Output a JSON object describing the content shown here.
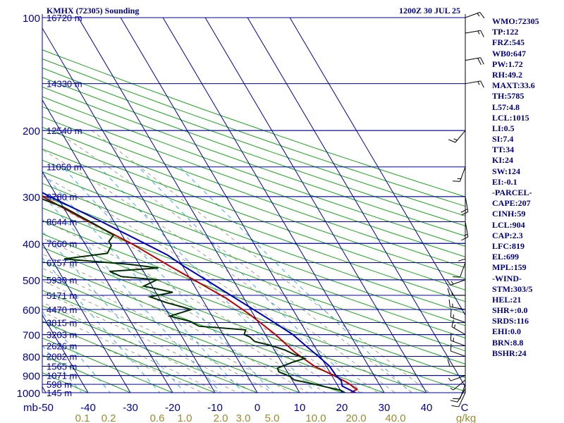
{
  "header": {
    "station": "KMHX (72305) Sounding",
    "time": "1200Z 30 JUL 25"
  },
  "indices": [
    "WMO:72305",
    "TP:122",
    "FRZ:545",
    "WB0:647",
    "PW:1.72",
    "RH:49.2",
    "MAXT:33.6",
    "TH:5785",
    "L57:4.8",
    "LCL:1015",
    "LI:0.5",
    "SI:7.4",
    "TT:34",
    "KI:24",
    "SW:124",
    "EI:-0.1",
    "-PARCEL-",
    "CAPE:207",
    "CINH:59",
    "LCL:904",
    "CAP:2.3",
    "LFC:819",
    "EL:699",
    "MPL:159",
    "-WIND-",
    "STM:303/5",
    "HEL:21",
    "SHR+:0.0",
    "SRDS:116",
    "EHI:0.0",
    "BRN:8.8",
    "BSHR:24"
  ],
  "chart_data": {
    "type": "line",
    "title": "KMHX (72305) Sounding",
    "xlabel": "",
    "ylabel": "mb",
    "ylim": [
      1000,
      100
    ],
    "xlim": [
      -50,
      50
    ],
    "y_ticks": [
      "100",
      "200",
      "300",
      "400",
      "500",
      "600",
      "700",
      "800",
      "900",
      "1000"
    ],
    "y_tick_values": [
      100,
      200,
      300,
      400,
      500,
      600,
      700,
      800,
      900,
      1000
    ],
    "x_ticks": [
      "-50",
      "-40",
      "-30",
      "-20",
      "-10",
      "0",
      "10",
      "20",
      "30",
      "40",
      "C"
    ],
    "x_tick_values": [
      -50,
      -40,
      -30,
      -20,
      -10,
      0,
      10,
      20,
      30,
      40
    ],
    "mixing_ratio_labels": [
      "0.1",
      "0.2",
      "0.6",
      "1.0",
      "2.0",
      "3.0",
      "5.0",
      "10.0",
      "20.0",
      "40.0",
      "g/kg"
    ],
    "heights": [
      {
        "p": 100,
        "label": "16720 m"
      },
      {
        "p": 150,
        "label": "14330 m"
      },
      {
        "p": 200,
        "label": "12540 m"
      },
      {
        "p": 250,
        "label": "11050 m"
      },
      {
        "p": 300,
        "label": "9780 m"
      },
      {
        "p": 350,
        "label": "8644 m"
      },
      {
        "p": 400,
        "label": "7660 m"
      },
      {
        "p": 450,
        "label": "6757 m"
      },
      {
        "p": 500,
        "label": "5930 m"
      },
      {
        "p": 550,
        "label": "5171 m"
      },
      {
        "p": 600,
        "label": "4470 m"
      },
      {
        "p": 650,
        "label": "3815 m"
      },
      {
        "p": 700,
        "label": "3203 m"
      },
      {
        "p": 750,
        "label": "2626 m"
      },
      {
        "p": 800,
        "label": "2082 m"
      },
      {
        "p": 850,
        "label": "1565 m"
      },
      {
        "p": 900,
        "label": "1071 m"
      },
      {
        "p": 950,
        "label": "598 m"
      },
      {
        "p": 1000,
        "label": "145 m"
      }
    ],
    "grid": true,
    "series": [
      {
        "color": "#c00000",
        "points": [
          [
            1006,
            21.5
          ],
          [
            980,
            24
          ],
          [
            940,
            22.7
          ],
          [
            900,
            20.5
          ],
          [
            850,
            17.2
          ],
          [
            780,
            14.5
          ],
          [
            700,
            12.4
          ],
          [
            620,
            9.2
          ],
          [
            560,
            5.8
          ],
          [
            460,
            -3.0
          ],
          [
            400,
            -9.0
          ],
          [
            340,
            -17.5
          ],
          [
            290,
            -25
          ],
          [
            250,
            -32
          ],
          [
            200,
            -44
          ],
          [
            150,
            -56
          ],
          [
            120,
            -56
          ],
          [
            100,
            -45
          ]
        ]
      },
      {
        "color": "#003000",
        "points": [
          [
            1006,
            21
          ],
          [
            985,
            20
          ],
          [
            965,
            17
          ],
          [
            945,
            14
          ],
          [
            925,
            10.5
          ],
          [
            905,
            10
          ],
          [
            880,
            8
          ],
          [
            860,
            8.2
          ],
          [
            830,
            12.5
          ],
          [
            810,
            16
          ],
          [
            790,
            14
          ],
          [
            770,
            12.5
          ],
          [
            750,
            10
          ],
          [
            730,
            6.5
          ],
          [
            710,
            6
          ],
          [
            700,
            5
          ],
          [
            680,
            6
          ],
          [
            665,
            -4.5
          ],
          [
            645,
            -6
          ],
          [
            625,
            -10
          ],
          [
            600,
            -4
          ],
          [
            575,
            -9
          ],
          [
            555,
            -12
          ],
          [
            540,
            -6
          ],
          [
            520,
            -12
          ],
          [
            500,
            -8
          ],
          [
            490,
            -16
          ],
          [
            475,
            -18
          ],
          [
            465,
            -6
          ],
          [
            455,
            -12
          ],
          [
            440,
            -27
          ],
          [
            425,
            -16
          ],
          [
            405,
            -14
          ],
          [
            395,
            -14
          ],
          [
            380,
            -12
          ],
          [
            355,
            -15
          ],
          [
            320,
            -20
          ],
          [
            300,
            -25
          ],
          [
            250,
            -36
          ],
          [
            200,
            -58
          ],
          [
            160,
            -58
          ],
          [
            130,
            -56
          ],
          [
            115,
            -52
          ],
          [
            100,
            -50
          ]
        ]
      },
      {
        "color": "#0000c0",
        "points": [
          [
            1006,
            23.5
          ],
          [
            960,
            21
          ],
          [
            930,
            21.5
          ],
          [
            900,
            21
          ],
          [
            850,
            20.8
          ],
          [
            800,
            19.5
          ],
          [
            750,
            18
          ],
          [
            700,
            16.5
          ],
          [
            650,
            13.8
          ],
          [
            600,
            10.7
          ],
          [
            550,
            7.3
          ],
          [
            500,
            3.6
          ],
          [
            460,
            0.3
          ],
          [
            430,
            -2
          ],
          [
            400,
            -5.8
          ],
          [
            350,
            -13
          ],
          [
            300,
            -21.7
          ],
          [
            250,
            -31
          ],
          [
            200,
            -42
          ],
          [
            150,
            -58
          ],
          [
            110,
            -70
          ]
        ]
      }
    ],
    "wind_barbs": [
      [
        1000,
        205,
        10
      ],
      [
        975,
        210,
        10
      ],
      [
        950,
        200,
        10
      ],
      [
        925,
        230,
        5
      ],
      [
        900,
        250,
        5
      ],
      [
        850,
        270,
        10
      ],
      [
        800,
        290,
        10
      ],
      [
        750,
        290,
        15
      ],
      [
        700,
        300,
        15
      ],
      [
        650,
        290,
        15
      ],
      [
        600,
        280,
        15
      ],
      [
        550,
        270,
        15
      ],
      [
        500,
        250,
        15
      ],
      [
        450,
        200,
        10
      ],
      [
        400,
        180,
        10
      ],
      [
        350,
        170,
        15
      ],
      [
        300,
        170,
        20
      ],
      [
        250,
        200,
        15
      ],
      [
        200,
        220,
        15
      ],
      [
        150,
        80,
        15
      ],
      [
        130,
        80,
        20
      ],
      [
        110,
        80,
        15
      ],
      [
        100,
        70,
        15
      ]
    ]
  }
}
